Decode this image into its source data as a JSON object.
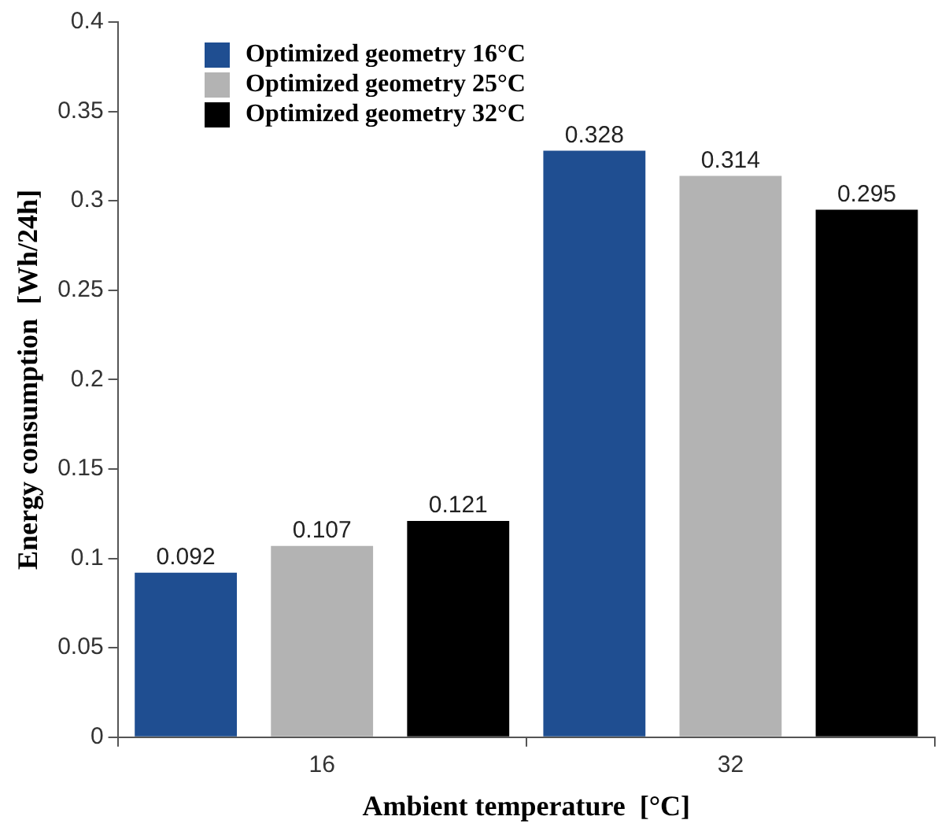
{
  "chart_data": {
    "type": "bar",
    "xlabel": "Ambient temperature  [°C]",
    "ylabel": "Energy consumption  [Wh/24h]",
    "categories": [
      "16",
      "32"
    ],
    "series": [
      {
        "name": "Optimized geometry  16°C",
        "color": "#1f4e91",
        "values": [
          0.092,
          0.328
        ]
      },
      {
        "name": "Optimized geometry  25°C",
        "color": "#b3b3b3",
        "values": [
          0.107,
          0.314
        ]
      },
      {
        "name": "Optimized geometry  32°C",
        "color": "#000000",
        "values": [
          0.121,
          0.295
        ]
      }
    ],
    "ylim": [
      0,
      0.4
    ],
    "yticks": [
      0,
      0.05,
      0.1,
      0.15,
      0.2,
      0.25,
      0.3,
      0.35,
      0.4
    ],
    "grid": false,
    "legend": "top left",
    "data_labels": true
  }
}
